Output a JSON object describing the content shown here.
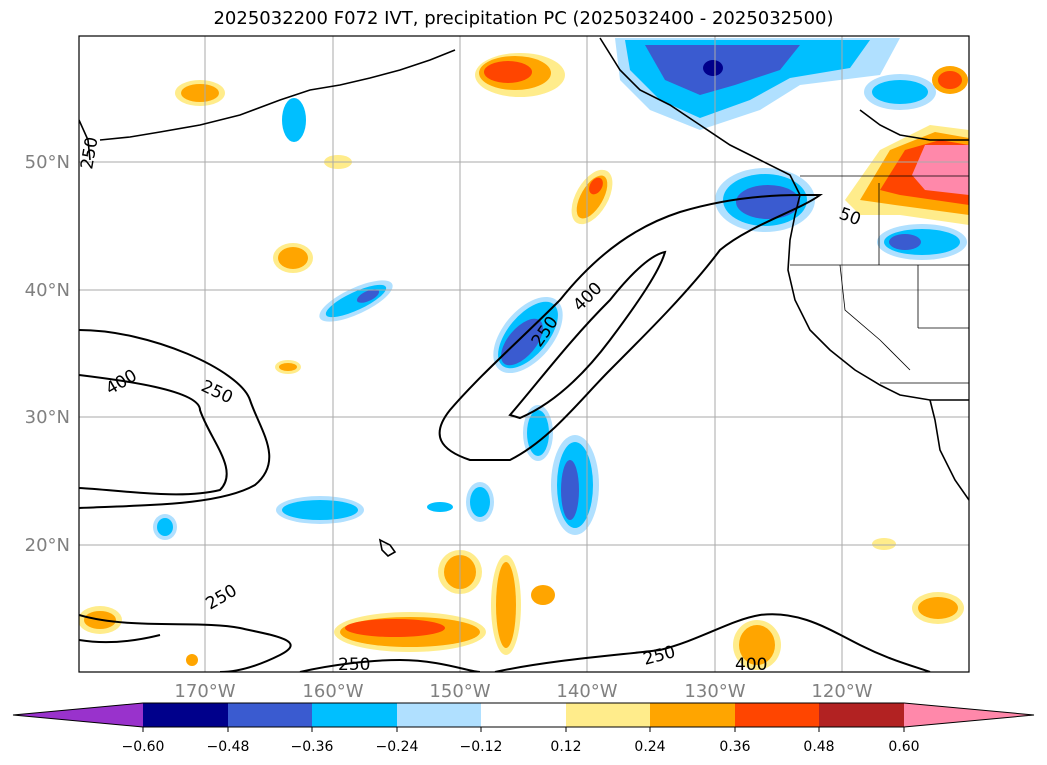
{
  "title": "2025032200 F072 IVT, precipitation PC (2025032400 - 2025032500)",
  "latitude_labels": [
    "50°N",
    "40°N",
    "30°N",
    "20°N"
  ],
  "longitude_labels": [
    "170°W",
    "160°W",
    "150°W",
    "140°W",
    "130°W",
    "120°W"
  ],
  "contour_labels": [
    "250",
    "250",
    "400",
    "400",
    "250",
    "250",
    "250",
    "50",
    "250",
    "400"
  ],
  "colorbar": {
    "ticks": [
      "−0.60",
      "−0.48",
      "−0.36",
      "−0.24",
      "−0.12",
      "0.12",
      "0.24",
      "0.36",
      "0.48",
      "0.60"
    ],
    "colors": [
      "#9932cc",
      "#00008b",
      "#3a5bd0",
      "#00bfff",
      "#b0e0ff",
      "#ffffff",
      "#ffec8b",
      "#ffa500",
      "#ff4500",
      "#b22222",
      "#ff88aa"
    ]
  },
  "colors": {
    "land_outline": "#000000",
    "grid": "#aaaaaa",
    "axis_label": "#808080"
  }
}
